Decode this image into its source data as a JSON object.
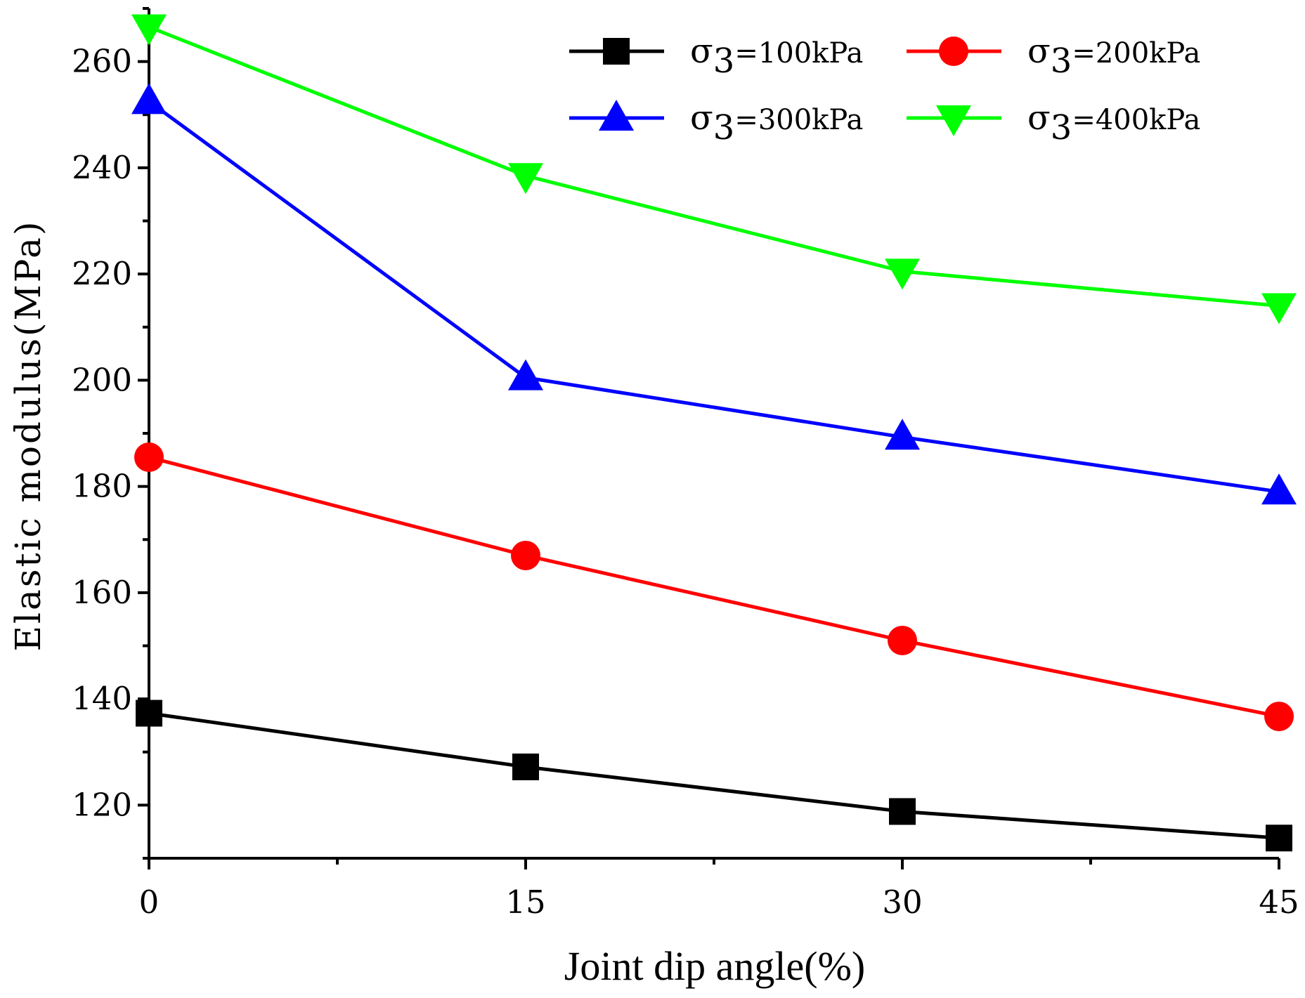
{
  "chart_data": {
    "type": "line",
    "title": "",
    "xlabel": "Joint dip angle(%)",
    "ylabel": "Elastic modulus(MPa)",
    "x": [
      0,
      15,
      30,
      45
    ],
    "xlim": [
      0,
      45
    ],
    "ylim": [
      110,
      270
    ],
    "xticks": [
      0,
      15,
      30,
      45
    ],
    "yticks": [
      120,
      140,
      160,
      180,
      200,
      220,
      240,
      260
    ],
    "grid": false,
    "legend_position": "top-right",
    "series": [
      {
        "name": "σ3=100kPa",
        "symbol": "σ",
        "subscript": "3",
        "rest": "=100kPa",
        "marker": "square",
        "color": "#000000",
        "values": [
          137.3,
          127.2,
          118.8,
          113.8
        ]
      },
      {
        "name": "σ3=200kPa",
        "symbol": "σ",
        "subscript": "3",
        "rest": "=200kPa",
        "marker": "circle",
        "color": "#ff0000",
        "values": [
          185.5,
          167.0,
          151.0,
          136.7
        ]
      },
      {
        "name": "σ3=300kPa",
        "symbol": "σ",
        "subscript": "3",
        "rest": "=300kPa",
        "marker": "triangle-up",
        "color": "#0000ff",
        "values": [
          252.5,
          200.5,
          189.3,
          179.0
        ]
      },
      {
        "name": "σ3=400kPa",
        "symbol": "σ",
        "subscript": "3",
        "rest": "=400kPa",
        "marker": "triangle-down",
        "color": "#00ff00",
        "values": [
          266.5,
          238.5,
          220.5,
          214.0
        ]
      }
    ]
  }
}
